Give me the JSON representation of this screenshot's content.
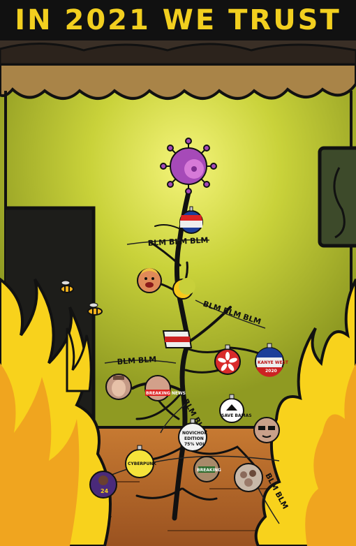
{
  "poster": {
    "title": "IN 2021 WE TRUST",
    "garland_text": "BLM BLM BLM",
    "garland_text_short": "BLM BLM",
    "garland_text_vertical": "BLM BLM",
    "ornaments": {
      "breaking_news": "BREAKING NEWS",
      "kanye": "KANYE WEST",
      "kanye_year": "2020",
      "novichok_line1": "NOVICHOK",
      "novichok_line2": "EDITION",
      "novichok_line3": "75% VOL",
      "save_bamas": "SAVE BAMAS",
      "cyberpunk": "CYBERPUNK",
      "kobe_number": "24",
      "breaking_bad": "BREAKING"
    }
  },
  "colors": {
    "title_yellow": "#f2cf1f",
    "wall_green": "#b8c32f",
    "wall_glow": "#e9ee6c",
    "floor_orange": "#b8682a",
    "curtain": "#a98448",
    "fire_yellow": "#f8d21c",
    "fire_orange": "#f0a51f",
    "virus_purple": "#a64ab8"
  }
}
